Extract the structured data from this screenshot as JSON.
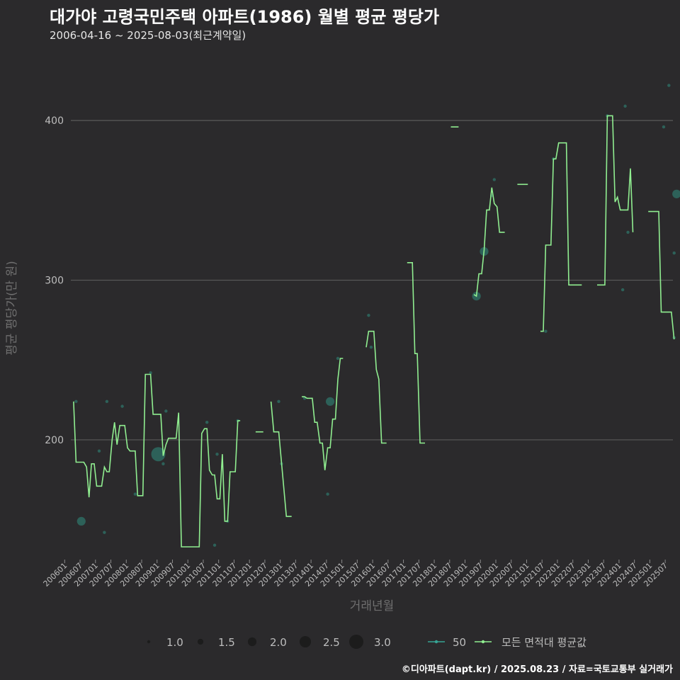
{
  "chart_data": {
    "type": "line",
    "title": "대가야 고령국민주택 아파트(1986) 월별 평균 평당가",
    "subtitle": "2006-04-16 ~ 2025-08-03(최근계약일)",
    "caption": "©디아파트(dapt.kr) / 2025.08.23 / 자료=국토교통부 실거래가",
    "xlabel": "거래년월",
    "ylabel": "평균 평당가(만 원)",
    "ylim": [
      125,
      440
    ],
    "yticks": [
      200,
      300,
      400
    ],
    "xlim": [
      2006.2,
      2025.75
    ],
    "xticks": [
      "200601",
      "200607",
      "200701",
      "200707",
      "200801",
      "200807",
      "200901",
      "200907",
      "201001",
      "201007",
      "201101",
      "201107",
      "201201",
      "201207",
      "201301",
      "201307",
      "201401",
      "201407",
      "201501",
      "201507",
      "201601",
      "201607",
      "201701",
      "201707",
      "201801",
      "201807",
      "201901",
      "201907",
      "202001",
      "202007",
      "202101",
      "202107",
      "202201",
      "202207",
      "202301",
      "202307",
      "202401",
      "202407",
      "202501",
      "202507"
    ],
    "series": [
      {
        "name": "모든 면적대 평균값",
        "color": "#90ee90",
        "segments": [
          [
            [
              2006.29,
              224
            ],
            [
              2006.37,
              186
            ],
            [
              2006.62,
              186
            ],
            [
              2006.71,
              183
            ],
            [
              2006.79,
              164
            ],
            [
              2006.87,
              185
            ],
            [
              2006.96,
              185
            ],
            [
              2007.04,
              171
            ],
            [
              2007.2,
              171
            ],
            [
              2007.29,
              183
            ],
            [
              2007.37,
              180
            ],
            [
              2007.45,
              180
            ],
            [
              2007.54,
              200
            ],
            [
              2007.62,
              211
            ],
            [
              2007.7,
              197
            ],
            [
              2007.79,
              209
            ],
            [
              2007.95,
              209
            ],
            [
              2008.04,
              195
            ],
            [
              2008.12,
              193
            ],
            [
              2008.29,
              193
            ],
            [
              2008.37,
              165
            ],
            [
              2008.54,
              165
            ],
            [
              2008.62,
              241
            ],
            [
              2008.79,
              241
            ],
            [
              2008.87,
              216
            ],
            [
              2009.12,
              216
            ],
            [
              2009.2,
              190
            ],
            [
              2009.29,
              197
            ],
            [
              2009.37,
              201
            ],
            [
              2009.62,
              201
            ],
            [
              2009.7,
              217
            ],
            [
              2009.79,
              133
            ],
            [
              2010.29,
              133
            ],
            [
              2010.37,
              133
            ],
            [
              2010.45,
              204
            ],
            [
              2010.54,
              207
            ],
            [
              2010.62,
              207
            ],
            [
              2010.7,
              181
            ],
            [
              2010.79,
              178
            ],
            [
              2010.87,
              178
            ],
            [
              2010.95,
              163
            ],
            [
              2011.04,
              163
            ],
            [
              2011.12,
              191
            ],
            [
              2011.2,
              149
            ],
            [
              2011.29,
              149
            ],
            [
              2011.37,
              180
            ],
            [
              2011.54,
              180
            ],
            [
              2011.62,
              212
            ],
            [
              2011.7,
              212
            ]
          ],
          [
            [
              2012.2,
              205
            ],
            [
              2012.45,
              205
            ]
          ],
          [
            [
              2012.7,
              224
            ],
            [
              2012.79,
              205
            ],
            [
              2012.95,
              205
            ],
            [
              2013.2,
              152
            ],
            [
              2013.37,
              152
            ]
          ],
          [
            [
              2013.7,
              227
            ],
            [
              2013.79,
              227
            ],
            [
              2013.87,
              226
            ],
            [
              2014.04,
              226
            ],
            [
              2014.12,
              211
            ],
            [
              2014.2,
              211
            ],
            [
              2014.29,
              198
            ],
            [
              2014.37,
              198
            ],
            [
              2014.45,
              181
            ],
            [
              2014.54,
              195
            ],
            [
              2014.62,
              195
            ],
            [
              2014.7,
              213
            ],
            [
              2014.79,
              213
            ],
            [
              2014.87,
              238
            ],
            [
              2014.95,
              251
            ],
            [
              2015.04,
              251
            ]
          ],
          [
            [
              2015.79,
              258
            ],
            [
              2015.87,
              268
            ],
            [
              2016.04,
              268
            ],
            [
              2016.12,
              244
            ],
            [
              2016.2,
              238
            ],
            [
              2016.29,
              198
            ],
            [
              2016.45,
              198
            ]
          ],
          [
            [
              2017.12,
              311
            ],
            [
              2017.29,
              311
            ],
            [
              2017.37,
              254
            ],
            [
              2017.45,
              254
            ],
            [
              2017.54,
              198
            ],
            [
              2017.7,
              198
            ]
          ],
          [
            [
              2018.54,
              396
            ],
            [
              2018.79,
              396
            ]
          ],
          [
            [
              2019.29,
              291
            ],
            [
              2019.37,
              290
            ],
            [
              2019.45,
              304
            ],
            [
              2019.54,
              304
            ],
            [
              2019.62,
              319
            ],
            [
              2019.7,
              344
            ],
            [
              2019.79,
              344
            ],
            [
              2019.87,
              358
            ],
            [
              2019.95,
              348
            ],
            [
              2020.04,
              346
            ],
            [
              2020.12,
              330
            ],
            [
              2020.29,
              330
            ]
          ],
          [
            [
              2020.7,
              360
            ],
            [
              2021.04,
              360
            ]
          ],
          [
            [
              2021.45,
              268
            ],
            [
              2021.54,
              268
            ],
            [
              2021.62,
              322
            ],
            [
              2021.79,
              322
            ],
            [
              2021.87,
              376
            ],
            [
              2021.95,
              376
            ],
            [
              2022.04,
              386
            ],
            [
              2022.29,
              386
            ],
            [
              2022.37,
              297
            ],
            [
              2022.79,
              297
            ]
          ],
          [
            [
              2023.29,
              297
            ],
            [
              2023.54,
              297
            ],
            [
              2023.62,
              403
            ],
            [
              2023.79,
              403
            ],
            [
              2023.87,
              349
            ],
            [
              2023.95,
              352
            ],
            [
              2024.04,
              344
            ],
            [
              2024.29,
              344
            ],
            [
              2024.37,
              370
            ],
            [
              2024.45,
              330
            ]
          ],
          [
            [
              2024.95,
              343
            ],
            [
              2025.29,
              343
            ],
            [
              2025.37,
              280
            ],
            [
              2025.7,
              280
            ],
            [
              2025.79,
              263
            ]
          ]
        ]
      }
    ],
    "series_shifted_note": "",
    "points_note": "",
    "points": [
      {
        "x": 2006.37,
        "y": 224,
        "size": 1.0
      },
      {
        "x": 2006.54,
        "y": 149,
        "size": 2.0
      },
      {
        "x": 2007.12,
        "y": 193,
        "size": 1.0
      },
      {
        "x": 2007.29,
        "y": 142,
        "size": 1.0
      },
      {
        "x": 2007.37,
        "y": 224,
        "size": 1.0
      },
      {
        "x": 2007.87,
        "y": 221,
        "size": 1.0
      },
      {
        "x": 2008.29,
        "y": 166,
        "size": 1.0
      },
      {
        "x": 2008.79,
        "y": 242,
        "size": 1.0
      },
      {
        "x": 2009.04,
        "y": 191,
        "size": 3.0
      },
      {
        "x": 2009.2,
        "y": 185,
        "size": 1.0
      },
      {
        "x": 2009.29,
        "y": 218,
        "size": 1.0
      },
      {
        "x": 2010.62,
        "y": 211,
        "size": 1.0
      },
      {
        "x": 2010.87,
        "y": 134,
        "size": 1.0
      },
      {
        "x": 2010.95,
        "y": 191,
        "size": 1.0
      },
      {
        "x": 2011.29,
        "y": 149,
        "size": 1.0
      },
      {
        "x": 2011.62,
        "y": 212,
        "size": 1.0
      },
      {
        "x": 2012.95,
        "y": 224,
        "size": 1.0
      },
      {
        "x": 2013.04,
        "y": 185,
        "size": 1.0
      },
      {
        "x": 2013.79,
        "y": 226,
        "size": 1.0
      },
      {
        "x": 2014.54,
        "y": 166,
        "size": 1.0
      },
      {
        "x": 2014.62,
        "y": 224,
        "size": 2.0
      },
      {
        "x": 2014.87,
        "y": 251,
        "size": 1.0
      },
      {
        "x": 2015.87,
        "y": 278,
        "size": 1.0
      },
      {
        "x": 2015.95,
        "y": 258,
        "size": 1.0
      },
      {
        "x": 2019.37,
        "y": 290,
        "size": 2.0
      },
      {
        "x": 2019.62,
        "y": 318,
        "size": 2.0
      },
      {
        "x": 2019.87,
        "y": 353,
        "size": 1.0
      },
      {
        "x": 2019.95,
        "y": 363,
        "size": 1.0
      },
      {
        "x": 2021.62,
        "y": 268,
        "size": 1.0
      },
      {
        "x": 2021.87,
        "y": 376,
        "size": 1.0
      },
      {
        "x": 2023.62,
        "y": 403,
        "size": 1.0
      },
      {
        "x": 2024.2,
        "y": 409,
        "size": 1.0
      },
      {
        "x": 2024.12,
        "y": 294,
        "size": 1.0
      },
      {
        "x": 2024.29,
        "y": 330,
        "size": 1.0
      },
      {
        "x": 2025.79,
        "y": 264,
        "size": 1.0
      },
      {
        "x": 2025.87,
        "y": 354,
        "size": 2.0
      },
      {
        "x": 2025.45,
        "y": 396,
        "size": 1.0
      },
      {
        "x": 2025.62,
        "y": 422,
        "size": 1.0
      },
      {
        "x": 2025.79,
        "y": 317,
        "size": 1.0
      }
    ],
    "legend": {
      "size_title": "",
      "sizes": [
        "1.0",
        "1.5",
        "2.0",
        "2.5",
        "3.0"
      ],
      "series_labels": [
        "50",
        "모든 면적대 평균값"
      ]
    },
    "colors": {
      "line": "#90ee90",
      "points": "#2f8e80",
      "area_line": "#36a394",
      "grid": "#5a5a5a",
      "text": "#bdbdbd",
      "background": "#2b2a2c"
    }
  }
}
